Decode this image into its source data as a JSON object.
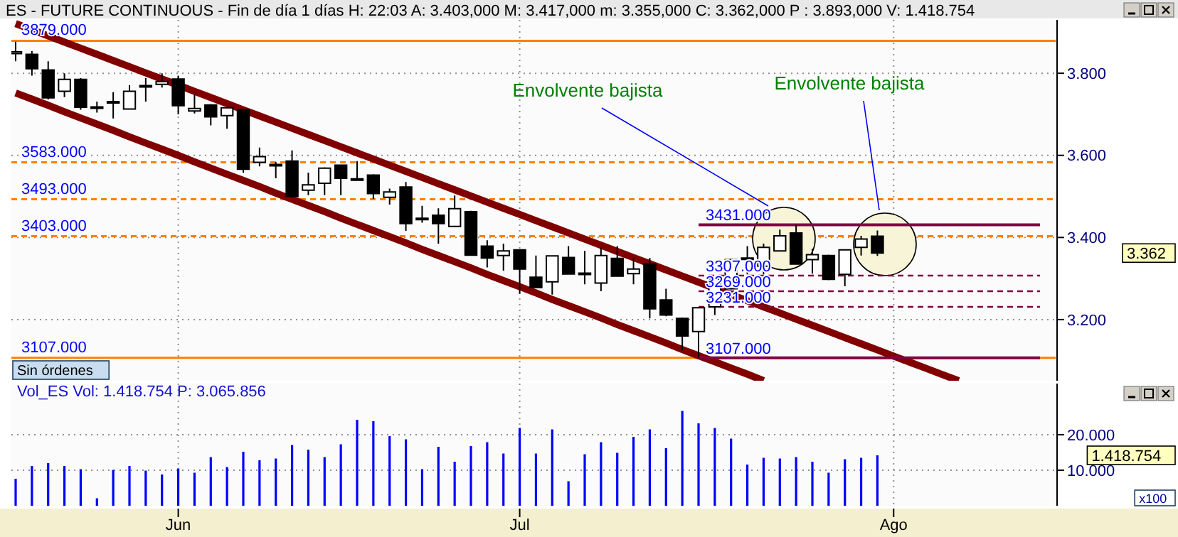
{
  "chart_data": [
    {
      "type": "candlestick",
      "title": "ES - FUTURE CONTINUOUS - Fin de día 1 días H: 22:03 A: 3.403,000 M: 3.417,000 m: 3.355,000 C: 3.362,000 P : 3.893,000 V: 1.418.754",
      "categories": [
        null,
        null,
        null,
        null,
        null,
        null,
        null,
        null,
        null,
        null,
        null,
        null,
        null,
        null,
        null,
        null,
        null,
        null,
        null,
        null,
        null,
        null,
        null,
        null,
        null,
        null,
        null,
        null,
        null,
        null,
        null,
        null,
        null,
        null,
        null,
        null,
        null,
        null,
        null,
        null,
        null,
        null,
        null,
        null,
        null,
        null,
        null,
        null,
        null,
        null,
        null,
        null,
        null,
        null,
        null,
        null,
        null,
        null,
        null,
        null,
        null,
        null,
        null,
        null
      ],
      "ohlc": [
        [
          3848,
          3877,
          3829,
          3852
        ],
        [
          3846,
          3854,
          3794,
          3811
        ],
        [
          3808,
          3829,
          3736,
          3740
        ],
        [
          3756,
          3800,
          3742,
          3785
        ],
        [
          3785,
          3788,
          3711,
          3717
        ],
        [
          3718,
          3731,
          3704,
          3716
        ],
        [
          3729,
          3754,
          3690,
          3731
        ],
        [
          3713,
          3771,
          3711,
          3756
        ],
        [
          3768,
          3788,
          3731,
          3770
        ],
        [
          3773,
          3800,
          3765,
          3780
        ],
        [
          3786,
          3794,
          3700,
          3721
        ],
        [
          3708,
          3750,
          3702,
          3714
        ],
        [
          3723,
          3725,
          3673,
          3694
        ],
        [
          3697,
          3718,
          3665,
          3716
        ],
        [
          3711,
          3713,
          3558,
          3566
        ],
        [
          3583,
          3619,
          3573,
          3597
        ],
        [
          3577,
          3584,
          3544,
          3578
        ],
        [
          3586,
          3612,
          3497,
          3500
        ],
        [
          3515,
          3558,
          3503,
          3528
        ],
        [
          3532,
          3571,
          3503,
          3569
        ],
        [
          3576,
          3578,
          3503,
          3544
        ],
        [
          3543,
          3586,
          3538,
          3541
        ],
        [
          3552,
          3554,
          3494,
          3507
        ],
        [
          3498,
          3519,
          3480,
          3511
        ],
        [
          3523,
          3535,
          3416,
          3434
        ],
        [
          3446,
          3477,
          3436,
          3447
        ],
        [
          3454,
          3471,
          3385,
          3434
        ],
        [
          3427,
          3502,
          3425,
          3470
        ],
        [
          3463,
          3465,
          3356,
          3357
        ],
        [
          3379,
          3393,
          3327,
          3350
        ],
        [
          3356,
          3385,
          3319,
          3367
        ],
        [
          3370,
          3371,
          3263,
          3323
        ],
        [
          3303,
          3356,
          3277,
          3278
        ],
        [
          3292,
          3357,
          3261,
          3355
        ],
        [
          3351,
          3379,
          3310,
          3311
        ],
        [
          3312,
          3367,
          3286,
          3313
        ],
        [
          3289,
          3375,
          3269,
          3356
        ],
        [
          3349,
          3379,
          3304,
          3306
        ],
        [
          3312,
          3350,
          3286,
          3323
        ],
        [
          3335,
          3350,
          3203,
          3226
        ],
        [
          3248,
          3275,
          3208,
          3211
        ],
        [
          3203,
          3205,
          3125,
          3160
        ],
        [
          3171,
          3231,
          3107,
          3229
        ],
        [
          3231,
          3299,
          3211,
          3298
        ],
        [
          3275,
          3348,
          3273,
          3346
        ],
        [
          3349,
          3379,
          3310,
          3350
        ],
        [
          3330,
          3385,
          3310,
          3376
        ],
        [
          3367,
          3419,
          3366,
          3404
        ],
        [
          3411,
          3431,
          3334,
          3335
        ],
        [
          3346,
          3373,
          3312,
          3358
        ],
        [
          3356,
          3358,
          3296,
          3298
        ],
        [
          3310,
          3371,
          3281,
          3370
        ],
        [
          3376,
          3404,
          3356,
          3396
        ],
        [
          3403,
          3417,
          3355,
          3362
        ],
        null,
        null,
        null,
        null,
        null,
        null,
        null,
        null,
        null,
        null
      ],
      "ylim": [
        3051,
        3930
      ],
      "yticks": [
        {
          "value": 3200,
          "label": "3.200"
        },
        {
          "value": 3400,
          "label": "3.400"
        },
        {
          "value": 3600,
          "label": "3.600"
        },
        {
          "value": 3800,
          "label": "3.800"
        }
      ],
      "grid": true,
      "tick_labels": "y",
      "series": [
        {
          "type": "line",
          "color": "#800000",
          "values": [
            3921,
            3906,
            3891,
            3876,
            3861,
            3846,
            3831,
            3816,
            3801,
            3786,
            null,
            3756,
            3741,
            3726,
            3711,
            3696,
            3681,
            3666,
            3651,
            3636,
            3621,
            3606,
            3591,
            3576,
            3561,
            3546,
            3531,
            3516,
            3501,
            3486,
            3471,
            3456,
            3441,
            3426,
            3411,
            3396,
            3381,
            3366,
            3351,
            3336,
            3321,
            3306,
            3291,
            null,
            3261,
            3246,
            3231,
            3216,
            3201,
            3186,
            3171,
            3156,
            3141,
            3126,
            3111,
            3096,
            3081,
            3066,
            3051,
            null,
            null,
            null,
            null,
            null
          ]
        },
        {
          "type": "line",
          "color": "#800000",
          "values": [
            3752,
            3737,
            3722,
            3706,
            3691,
            3676,
            3661,
            3645,
            3630,
            3615,
            3600,
            3584,
            3569,
            3554,
            3539,
            3524,
            3508,
            3493,
            3478,
            3463,
            3447,
            3432,
            3417,
            3402,
            3387,
            3371,
            3356,
            3341,
            3326,
            3310,
            3295,
            3280,
            3265,
            3249,
            3234,
            3219,
            3204,
            3188,
            3173,
            3158,
            3143,
            3127,
            3112,
            3097,
            3082,
            3067,
            3051,
            null,
            null,
            null,
            null,
            null,
            null,
            null,
            null,
            null,
            null,
            null,
            null,
            null,
            null,
            null,
            null,
            null
          ]
        },
        {
          "type": "line",
          "name": "3431.000",
          "color": "#800040",
          "values": [
            null,
            null,
            null,
            null,
            null,
            null,
            null,
            null,
            null,
            null,
            null,
            null,
            null,
            null,
            null,
            null,
            null,
            null,
            null,
            null,
            null,
            null,
            null,
            null,
            null,
            null,
            null,
            null,
            null,
            null,
            null,
            null,
            null,
            null,
            null,
            null,
            null,
            null,
            null,
            null,
            null,
            null,
            3431,
            3431,
            3431,
            3431,
            3431,
            3431,
            3431,
            3431,
            3431,
            3431,
            3431,
            3431,
            3431,
            3431,
            3431,
            3431,
            3431,
            3431,
            3431,
            3431,
            3431,
            3431
          ]
        },
        {
          "type": "line",
          "name": "3307.000",
          "color": "#800040",
          "line_style": "dashed",
          "values": [
            null,
            null,
            null,
            null,
            null,
            null,
            null,
            null,
            null,
            null,
            null,
            null,
            null,
            null,
            null,
            null,
            null,
            null,
            null,
            null,
            null,
            null,
            null,
            null,
            null,
            null,
            null,
            null,
            null,
            null,
            null,
            null,
            null,
            null,
            null,
            null,
            null,
            null,
            null,
            null,
            null,
            null,
            3307,
            3307,
            3307,
            3307,
            3307,
            3307,
            3307,
            3307,
            null,
            3307,
            3307,
            3307,
            3307,
            3307,
            3307,
            3307,
            3307,
            3307,
            3307,
            3307,
            3307,
            3307
          ]
        },
        {
          "type": "line",
          "name": "3269.000",
          "color": "#800040",
          "line_style": "dashed",
          "values": [
            null,
            null,
            null,
            null,
            null,
            null,
            null,
            null,
            null,
            null,
            null,
            null,
            null,
            null,
            null,
            null,
            null,
            null,
            null,
            null,
            null,
            null,
            null,
            null,
            null,
            null,
            null,
            null,
            null,
            null,
            null,
            null,
            null,
            null,
            null,
            null,
            null,
            null,
            null,
            null,
            null,
            null,
            3269,
            3269,
            3269,
            3269,
            3269,
            3269,
            3269,
            3269,
            3269,
            3269,
            3269,
            3269,
            3269,
            3269,
            3269,
            3269,
            3269,
            3269,
            3269,
            3269,
            3269,
            3269
          ]
        },
        {
          "type": "line",
          "name": "3231.000",
          "color": "#800040",
          "line_style": "dashed",
          "values": [
            null,
            null,
            null,
            null,
            null,
            null,
            null,
            null,
            null,
            null,
            null,
            null,
            null,
            null,
            null,
            null,
            null,
            null,
            null,
            null,
            null,
            null,
            null,
            null,
            null,
            null,
            null,
            null,
            null,
            null,
            null,
            null,
            null,
            null,
            null,
            null,
            null,
            null,
            null,
            null,
            null,
            null,
            3231,
            3231,
            3231,
            3231,
            3231,
            3231,
            3231,
            3231,
            3231,
            3231,
            3231,
            3231,
            3231,
            3231,
            3231,
            3231,
            3231,
            3231,
            3231,
            3231,
            3231,
            3231
          ]
        },
        {
          "type": "line",
          "name": "3107.000",
          "color": "#800040",
          "values": [
            null,
            null,
            null,
            null,
            null,
            null,
            null,
            null,
            null,
            null,
            null,
            null,
            null,
            null,
            null,
            null,
            null,
            null,
            null,
            null,
            null,
            null,
            null,
            null,
            null,
            null,
            null,
            null,
            null,
            null,
            null,
            null,
            null,
            null,
            null,
            null,
            null,
            null,
            null,
            null,
            null,
            null,
            3107,
            3107,
            3107,
            3107,
            3107,
            3107,
            3107,
            3107,
            3107,
            3107,
            3107,
            3107,
            3107,
            3107,
            3107,
            3107,
            3107,
            3107,
            3107,
            3107,
            3107,
            3107
          ]
        }
      ],
      "ref_lines": [
        {
          "axis": "y",
          "value": 3879,
          "label": "3879.000",
          "color": "#ff8000",
          "line_style": "solid"
        },
        {
          "axis": "y",
          "value": 3583,
          "label": "3583.000",
          "color": "#ff8000",
          "line_style": "dashed"
        },
        {
          "axis": "y",
          "value": 3493,
          "label": "3493.000",
          "color": "#ff8000",
          "line_style": "dashed"
        },
        {
          "axis": "y",
          "value": 3403,
          "label": "3403.000",
          "color": "#ff8000",
          "line_style": "dashed"
        },
        {
          "axis": "y",
          "value": 3107,
          "label": "3107.000",
          "color": "#ff8000",
          "line_style": "solid"
        }
      ],
      "annotations": [
        "Envolvente bajista",
        "Envolvente bajista",
        "3.362",
        "Sin órdenes"
      ]
    },
    {
      "type": "bar",
      "title": "Vol_ES Vol: 1.418.754 P: 3.065.856",
      "color": "#0000ff",
      "categories": [
        null,
        null,
        null,
        null,
        null,
        null,
        null,
        null,
        null,
        null,
        "Jun",
        null,
        null,
        null,
        null,
        null,
        null,
        null,
        null,
        null,
        null,
        null,
        null,
        null,
        null,
        null,
        null,
        null,
        null,
        null,
        null,
        "Jul",
        null,
        null,
        null,
        null,
        null,
        null,
        null,
        null,
        null,
        null,
        null,
        null,
        null,
        null,
        null,
        null,
        null,
        null,
        null,
        null,
        null,
        null,
        "Ago",
        null,
        null,
        null,
        null,
        null,
        null,
        null,
        null,
        null
      ],
      "values": [
        7600,
        11200,
        12000,
        11200,
        10300,
        2100,
        10100,
        11200,
        9900,
        8800,
        10500,
        9300,
        13700,
        10900,
        15200,
        12800,
        13300,
        17100,
        15800,
        13700,
        17300,
        24200,
        23800,
        19600,
        18700,
        10300,
        16600,
        12400,
        16800,
        17900,
        14700,
        21900,
        14700,
        21500,
        6900,
        14500,
        17900,
        14900,
        19400,
        21500,
        16200,
        26700,
        23200,
        21900,
        18900,
        11600,
        13500,
        13300,
        13700,
        12400,
        9300,
        13100,
        13500,
        14200,
        null,
        null,
        null,
        null,
        null,
        null,
        null,
        null,
        null,
        null
      ],
      "ylim": [
        0,
        34400
      ],
      "yticks": [
        {
          "value": 10000,
          "label": "10.000"
        },
        {
          "value": 20000,
          "label": "20.000"
        }
      ],
      "grid": true,
      "annotations": [
        "1.418.754",
        "x100"
      ]
    }
  ]
}
